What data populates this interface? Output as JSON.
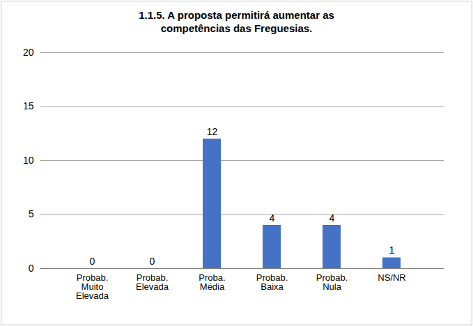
{
  "chart_data": {
    "type": "bar",
    "title": "1.1.5. A proposta permitirá aumentar as competências das Freguesias.",
    "categories": [
      "Probab. Muito Elevada",
      "Probab. Elevada",
      "Proba. Média",
      "Probab. Baixa",
      "Probab. Nula",
      "NS/NR"
    ],
    "values": [
      0,
      0,
      12,
      4,
      4,
      1
    ],
    "color": "#4472c4",
    "ylim": [
      0,
      20
    ],
    "yticks": [
      0,
      5,
      10,
      15,
      20
    ],
    "grid": true,
    "data_labels": true
  }
}
